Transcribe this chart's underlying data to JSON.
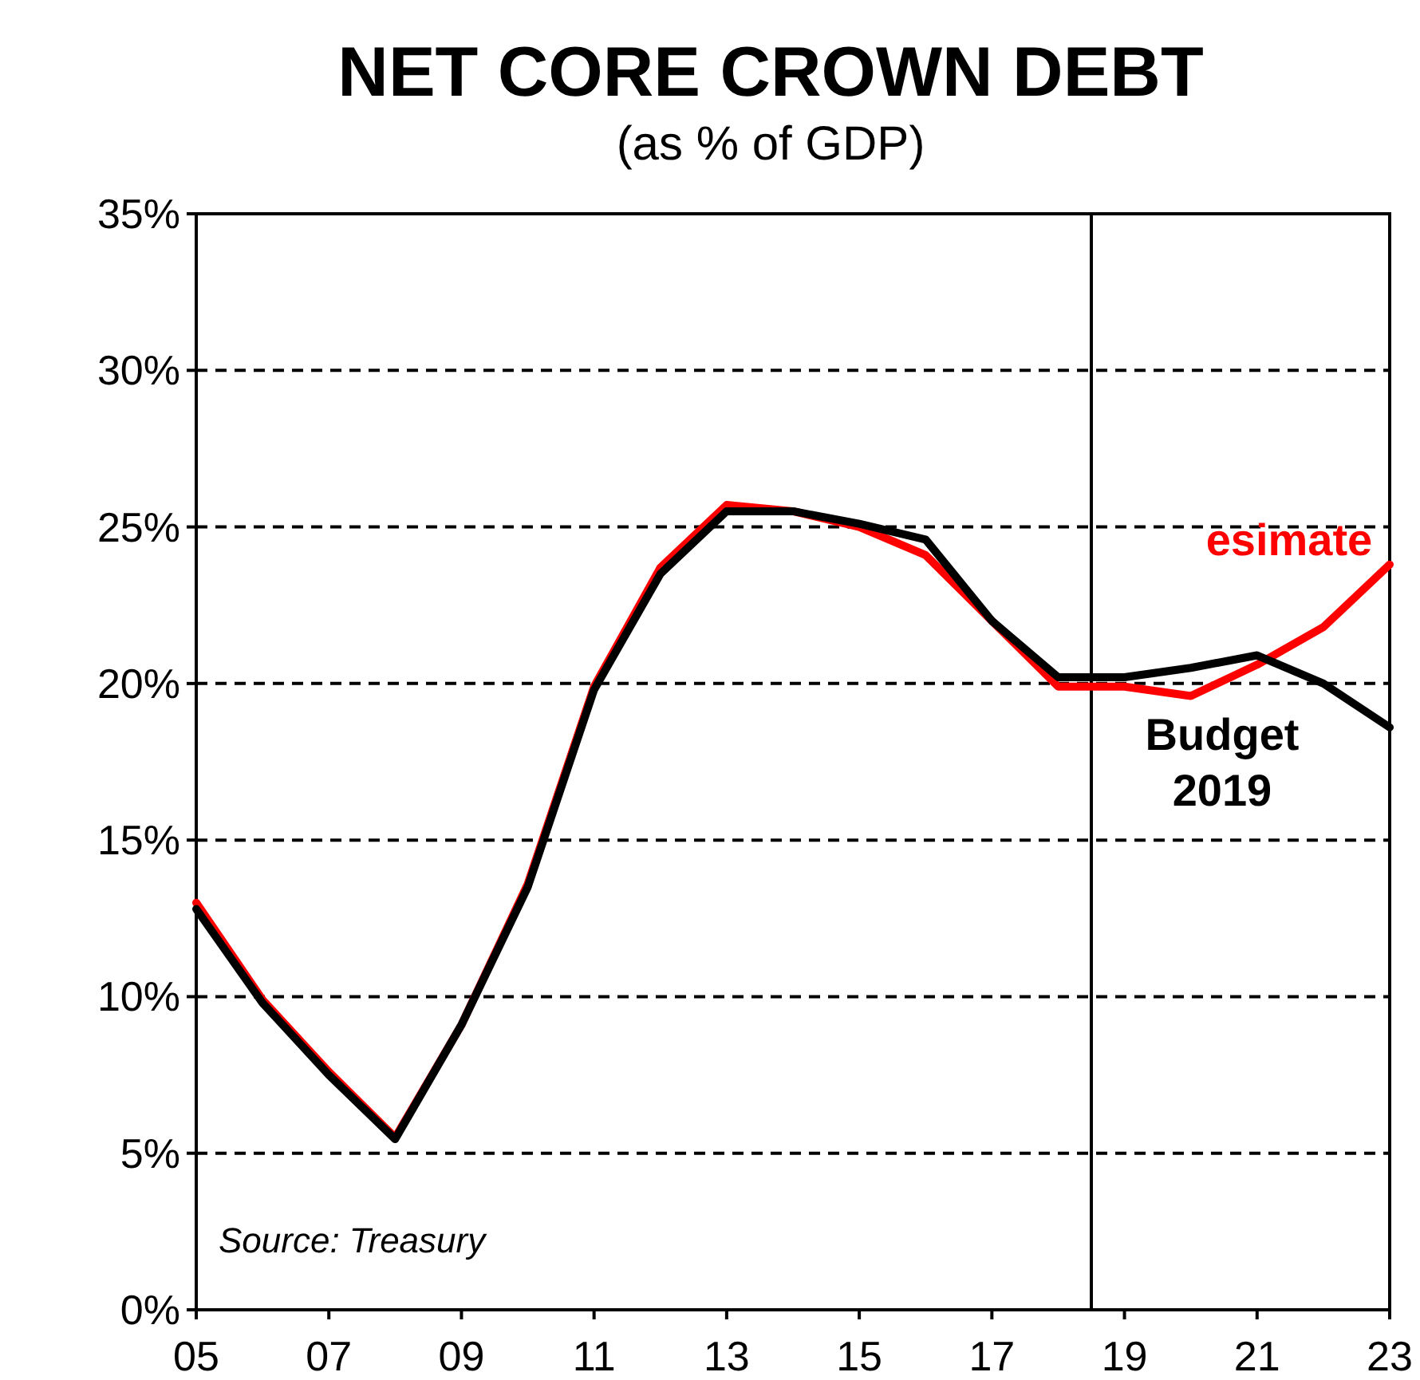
{
  "chart_data": {
    "type": "line",
    "title": "NET CORE CROWN DEBT",
    "subtitle": "(as % of GDP)",
    "x": [
      2005,
      2006,
      2007,
      2008,
      2009,
      2010,
      2011,
      2012,
      2013,
      2014,
      2015,
      2016,
      2017,
      2018,
      2019,
      2020,
      2021,
      2022,
      2023
    ],
    "series": [
      {
        "name": "esimate",
        "color": "#ff0000",
        "values": [
          13.0,
          9.9,
          7.6,
          5.5,
          9.1,
          13.6,
          19.9,
          23.7,
          25.7,
          25.5,
          25.0,
          24.1,
          22.0,
          19.9,
          19.9,
          19.6,
          20.6,
          21.8,
          23.8
        ]
      },
      {
        "name": "Budget 2019",
        "color": "#000000",
        "values": [
          12.8,
          9.8,
          7.5,
          5.45,
          9.1,
          13.5,
          19.8,
          23.5,
          25.5,
          25.5,
          25.1,
          24.6,
          22.0,
          20.2,
          20.2,
          20.5,
          20.9,
          20.0,
          18.6
        ]
      }
    ],
    "xlim": [
      2005,
      2023
    ],
    "xticks": [
      {
        "value": 2005,
        "label": "05"
      },
      {
        "value": 2007,
        "label": "07"
      },
      {
        "value": 2009,
        "label": "09"
      },
      {
        "value": 2011,
        "label": "11"
      },
      {
        "value": 2013,
        "label": "13"
      },
      {
        "value": 2015,
        "label": "15"
      },
      {
        "value": 2017,
        "label": "17"
      },
      {
        "value": 2019,
        "label": "19"
      },
      {
        "value": 2021,
        "label": "21"
      },
      {
        "value": 2023,
        "label": "23"
      }
    ],
    "ylim": [
      0,
      35
    ],
    "yticks": [
      {
        "value": 0,
        "label": "0%"
      },
      {
        "value": 5,
        "label": "5%"
      },
      {
        "value": 10,
        "label": "10%"
      },
      {
        "value": 15,
        "label": "15%"
      },
      {
        "value": 20,
        "label": "20%"
      },
      {
        "value": 25,
        "label": "25%"
      },
      {
        "value": 30,
        "label": "30%"
      },
      {
        "value": 35,
        "label": "35%"
      }
    ],
    "grid": "y",
    "legend": false,
    "marker": "none",
    "line_style": "solid",
    "ref_lines": [
      {
        "axis": "x",
        "value": 2018.5,
        "color": "#000000"
      }
    ],
    "annotations": [
      "Source:  Treasury"
    ]
  }
}
